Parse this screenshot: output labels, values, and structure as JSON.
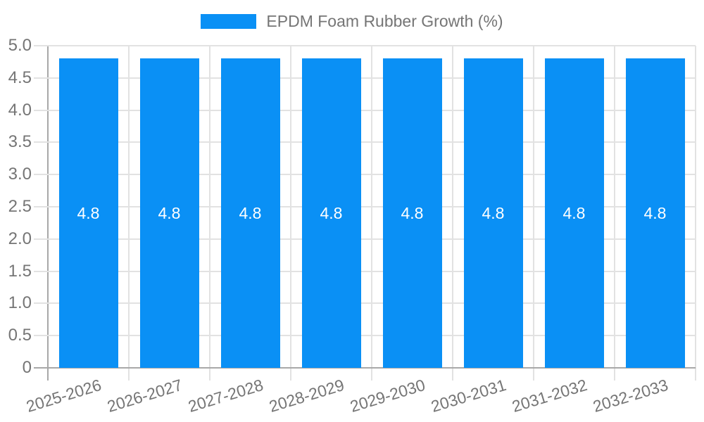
{
  "legend": {
    "label": "EPDM Foam Rubber Growth (%)"
  },
  "chart_data": {
    "type": "bar",
    "title": "",
    "categories": [
      "2025-2026",
      "2026-2027",
      "2027-2028",
      "2028-2029",
      "2029-2030",
      "2030-2031",
      "2031-2032",
      "2032-2033"
    ],
    "series": [
      {
        "name": "EPDM Foam Rubber Growth (%)",
        "values": [
          4.8,
          4.8,
          4.8,
          4.8,
          4.8,
          4.8,
          4.8,
          4.8
        ],
        "color": "#0a90f5"
      }
    ],
    "bar_labels": [
      "4.8",
      "4.8",
      "4.8",
      "4.8",
      "4.8",
      "4.8",
      "4.8",
      "4.8"
    ],
    "xlabel": "",
    "ylabel": "",
    "ylim": [
      0,
      5
    ],
    "ytick_step": 0.5,
    "ytick_labels": [
      "0",
      "0.5",
      "1.0",
      "1.5",
      "2.0",
      "2.5",
      "3.0",
      "3.5",
      "4.0",
      "4.5",
      "5.0"
    ],
    "grid": true,
    "legend_position": "top",
    "x_label_rotation_deg": -17
  },
  "colors": {
    "background": "#ffffff",
    "bar": "#0a90f5",
    "bar_label": "#ffffff",
    "gridline": "#e2e2e2",
    "axis_line": "#a8a8a8",
    "tick_text": "#757575",
    "legend_text": "#757575"
  }
}
